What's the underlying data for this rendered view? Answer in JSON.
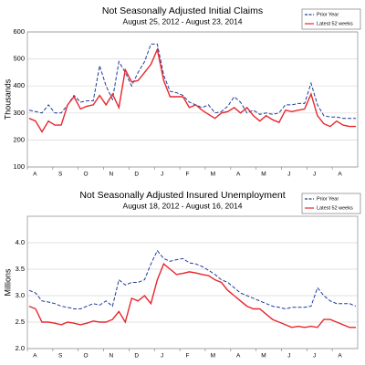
{
  "chart_data": [
    {
      "type": "line",
      "title": "Not Seasonally Adjusted Initial Claims",
      "subtitle": "August 25, 2012  -  August 23, 2014",
      "ylabel": "Thousands",
      "xtick_labels": [
        "A",
        "S",
        "O",
        "N",
        "D",
        "J",
        "F",
        "M",
        "A",
        "M",
        "J",
        "J",
        "A"
      ],
      "ylim": [
        100,
        600
      ],
      "yticks": [
        100,
        200,
        300,
        400,
        500,
        600
      ],
      "grid": true,
      "legend": "upper right",
      "series": [
        {
          "name": "Prior Year",
          "color": "#1f3d99",
          "dashed": true,
          "values": [
            310,
            305,
            300,
            330,
            300,
            300,
            330,
            365,
            340,
            345,
            345,
            475,
            400,
            350,
            490,
            450,
            400,
            450,
            490,
            555,
            555,
            440,
            380,
            375,
            365,
            340,
            330,
            320,
            330,
            300,
            305,
            325,
            360,
            340,
            300,
            310,
            295,
            300,
            295,
            300,
            330,
            330,
            335,
            335,
            410,
            330,
            290,
            285,
            285,
            280,
            280,
            280
          ]
        },
        {
          "name": "Latest 52 weeks",
          "color": "#e8262d",
          "dashed": false,
          "values": [
            280,
            270,
            230,
            270,
            255,
            255,
            330,
            360,
            315,
            325,
            330,
            365,
            330,
            370,
            320,
            460,
            415,
            420,
            450,
            480,
            535,
            420,
            360,
            360,
            360,
            320,
            330,
            310,
            295,
            280,
            300,
            305,
            320,
            300,
            320,
            290,
            270,
            290,
            275,
            265,
            310,
            305,
            310,
            315,
            370,
            290,
            260,
            250,
            270,
            255,
            250,
            250
          ]
        }
      ]
    },
    {
      "type": "line",
      "title": "Not Seasonally Adjusted Insured Unemployment",
      "subtitle": "August 18, 2012  -  August 16, 2014",
      "ylabel": "Millions",
      "xtick_labels": [
        "A",
        "S",
        "O",
        "N",
        "D",
        "J",
        "F",
        "M",
        "A",
        "M",
        "J",
        "J",
        "A"
      ],
      "ylim": [
        2.0,
        4.5
      ],
      "yticks": [
        {
          "value": 2.0,
          "label": "2.0"
        },
        {
          "value": 2.5,
          "label": "2.5"
        },
        {
          "value": 3.0,
          "label": "3.0"
        },
        {
          "value": 3.5,
          "label": "3.5"
        },
        {
          "value": 4.0,
          "label": "4.0"
        }
      ],
      "grid": true,
      "legend": "upper right",
      "series": [
        {
          "name": "Prior Year",
          "color": "#1f3d99",
          "dashed": true,
          "values": [
            3.1,
            3.05,
            2.9,
            2.88,
            2.85,
            2.8,
            2.78,
            2.75,
            2.75,
            2.8,
            2.85,
            2.82,
            2.9,
            2.8,
            3.3,
            3.2,
            3.25,
            3.25,
            3.3,
            3.6,
            3.85,
            3.7,
            3.65,
            3.68,
            3.7,
            3.62,
            3.6,
            3.55,
            3.48,
            3.4,
            3.3,
            3.25,
            3.15,
            3.05,
            3.0,
            2.95,
            2.9,
            2.85,
            2.8,
            2.78,
            2.75,
            2.78,
            2.78,
            2.78,
            2.8,
            3.15,
            3.0,
            2.9,
            2.85,
            2.85,
            2.85,
            2.8
          ]
        },
        {
          "name": "Latest 52 weeks",
          "color": "#e8262d",
          "dashed": false,
          "values": [
            2.8,
            2.75,
            2.5,
            2.5,
            2.48,
            2.45,
            2.5,
            2.48,
            2.45,
            2.48,
            2.52,
            2.5,
            2.5,
            2.55,
            2.7,
            2.5,
            2.95,
            2.9,
            3.0,
            2.85,
            3.3,
            3.6,
            3.5,
            3.4,
            3.42,
            3.45,
            3.43,
            3.4,
            3.38,
            3.3,
            3.25,
            3.1,
            3.0,
            2.9,
            2.8,
            2.75,
            2.75,
            2.65,
            2.55,
            2.5,
            2.45,
            2.4,
            2.42,
            2.4,
            2.42,
            2.4,
            2.55,
            2.55,
            2.5,
            2.45,
            2.4,
            2.4
          ]
        }
      ]
    }
  ]
}
